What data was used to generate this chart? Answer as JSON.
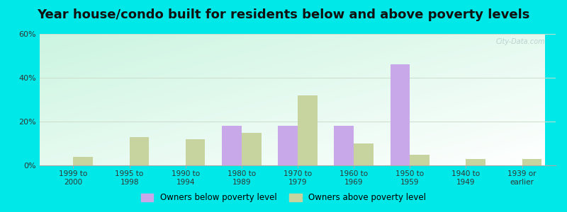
{
  "title": "Year house/condo built for residents below and above poverty levels",
  "categories": [
    "1999 to\n2000",
    "1995 to\n1998",
    "1990 to\n1994",
    "1980 to\n1989",
    "1970 to\n1979",
    "1960 to\n1969",
    "1950 to\n1959",
    "1940 to\n1949",
    "1939 or\nearlier"
  ],
  "below_poverty": [
    0,
    0,
    0,
    18,
    18,
    18,
    46,
    0,
    0
  ],
  "above_poverty": [
    4,
    13,
    12,
    15,
    32,
    10,
    5,
    3,
    3
  ],
  "below_color": "#c8a8e8",
  "above_color": "#c8d4a0",
  "ylim": [
    0,
    60
  ],
  "yticks": [
    0,
    20,
    40,
    60
  ],
  "ytick_labels": [
    "0%",
    "20%",
    "40%",
    "60%"
  ],
  "below_label": "Owners below poverty level",
  "above_label": "Owners above poverty level",
  "bar_width": 0.35,
  "title_fontsize": 13,
  "outer_bg": "#00e8e8",
  "grid_color": "#ccddcc",
  "watermark": "City-Data.com"
}
